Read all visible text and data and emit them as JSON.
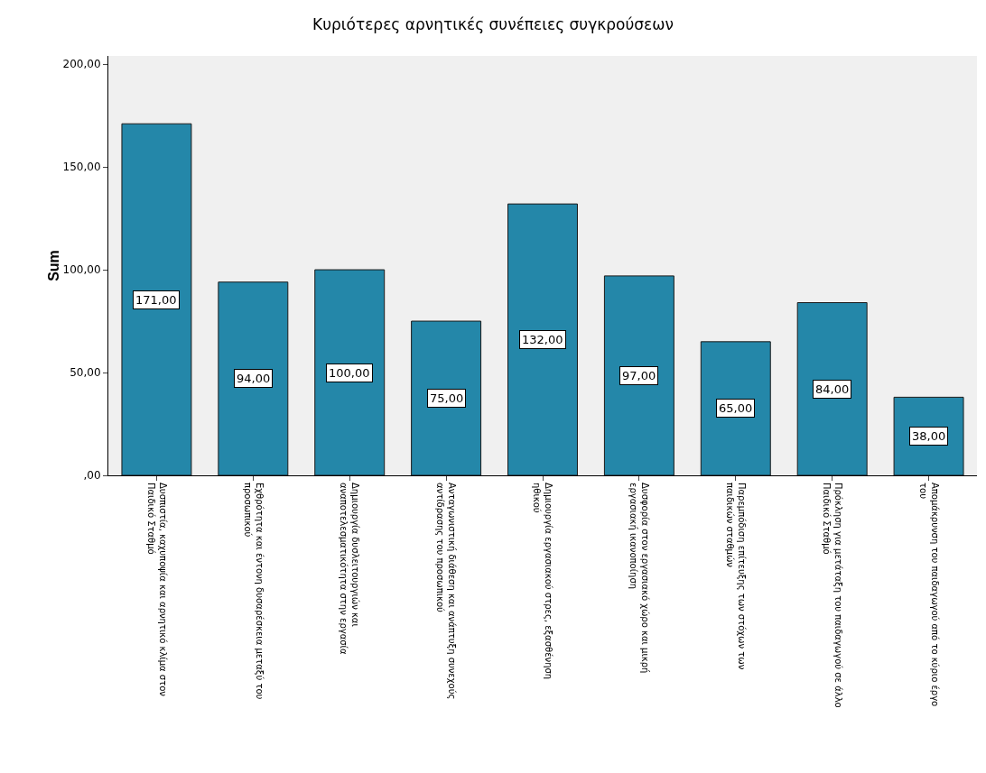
{
  "chart_data": {
    "type": "bar",
    "title": "Κυριότερες αρνητικές συνέπειες συγκρούσεων",
    "ylabel": "Sum",
    "categories": [
      "Δυσπιστία, καχυποψία και αρνητικό κλίμα στον Παιδικό Σταθμό",
      "Εχθρότητα και έντονη δυσαρέσκεια μεταξύ του προσωπικού",
      "Δημιουργία δυσλειτουργιών και αναποτελεσματικότητα στην εργασία",
      "Ανταγωνιστική διάθεση και ανάπτυξη συνεχούς αντίδρασης του προσωπικού",
      "Δημιουργία εργασιακού στρες, εξασθένηση ηθικού",
      "Δυσφορία στον εργασιακό χώρο και μικρή εργασιακή ικανοποίηση",
      "Παρεμπόδιση επίτευξης των στόχων των παιδικών σταθμών",
      "Πρόκληση για μετάταξη του παιδαγωγού σε άλλο Παιδικό Σταθμό",
      "Απομάκρυνση του παιδαγωγού από το κύριο έργο του"
    ],
    "values": [
      171,
      94,
      100,
      75,
      132,
      97,
      65,
      84,
      38
    ],
    "value_labels": [
      "171,00",
      "94,00",
      "100,00",
      "75,00",
      "132,00",
      "97,00",
      "65,00",
      "84,00",
      "38,00"
    ],
    "color": "#2487a9",
    "ylim": [
      0,
      204
    ],
    "yticks": [
      {
        "value": 0,
        "label": ",00"
      },
      {
        "value": 50,
        "label": "50,00"
      },
      {
        "value": 100,
        "label": "100,00"
      },
      {
        "value": 150,
        "label": "150,00"
      },
      {
        "value": 200,
        "label": "200,00"
      }
    ],
    "grid": false
  }
}
